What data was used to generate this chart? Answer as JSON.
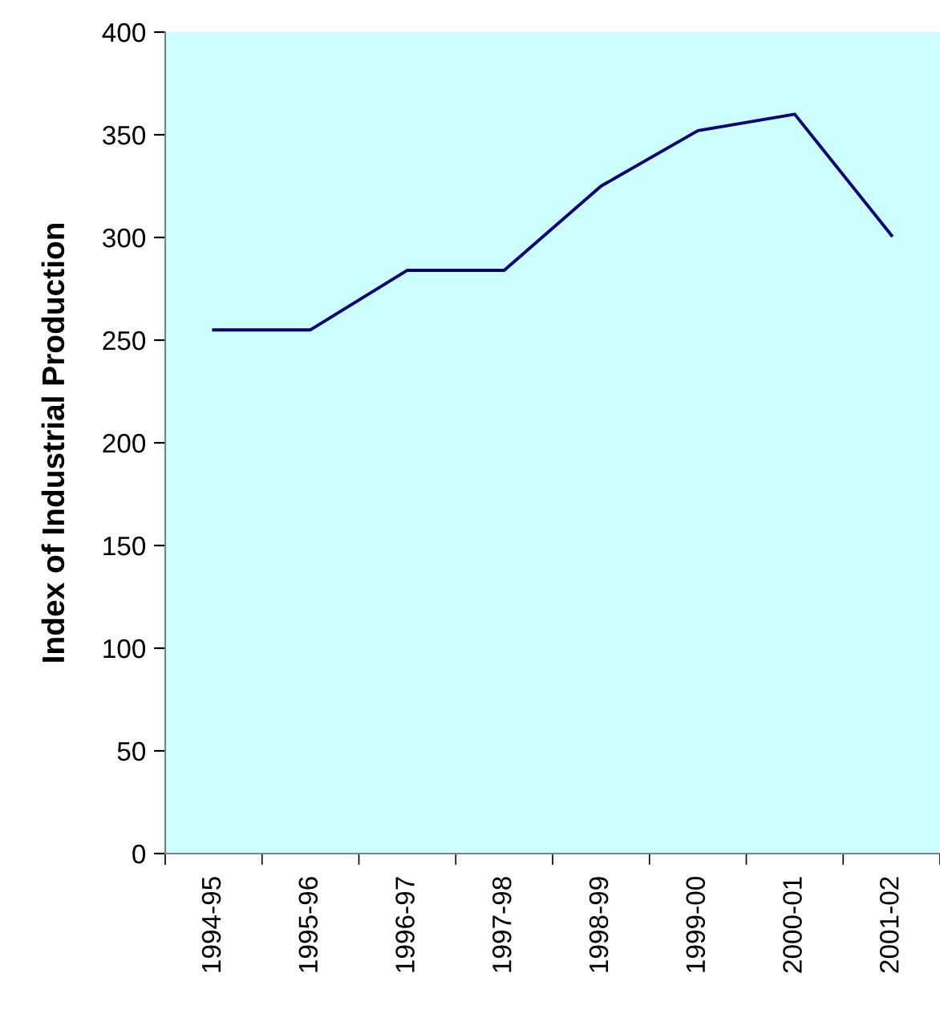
{
  "chart_data": {
    "type": "line",
    "ylabel": "Index of Industrial Production",
    "categories": [
      "1994-95",
      "1995-96",
      "1996-97",
      "1997-98",
      "1998-99",
      "1999-00",
      "2000-01",
      "2001-02"
    ],
    "series": [
      {
        "color": "#000080",
        "values": [
          255,
          255,
          284,
          284,
          325,
          352,
          360,
          301
        ]
      }
    ],
    "ylim": [
      0,
      400
    ],
    "yticks": [
      0,
      50,
      100,
      150,
      200,
      250,
      300,
      350,
      400
    ],
    "grid": false,
    "legend": false,
    "marker": "none",
    "line_style": "solid"
  }
}
